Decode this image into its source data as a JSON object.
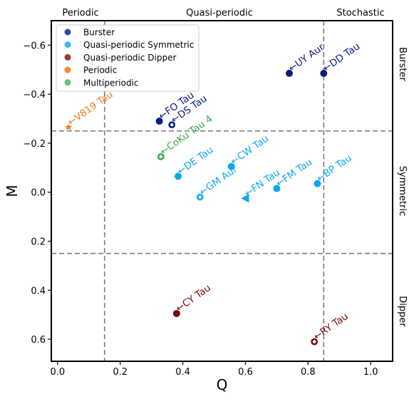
{
  "chart_data": {
    "type": "scatter",
    "xlabel": "Q",
    "ylabel": "M",
    "xlim": [
      -0.02,
      1.07
    ],
    "ylim": [
      0.69,
      -0.7
    ],
    "y_inverted": true,
    "xticks": [
      0.0,
      0.2,
      0.4,
      0.6,
      0.8,
      1.0
    ],
    "xtick_labels": [
      "0.0",
      "0.2",
      "0.4",
      "0.6",
      "0.8",
      "1.0"
    ],
    "yticks": [
      -0.6,
      -0.4,
      -0.2,
      0.0,
      0.2,
      0.4,
      0.6
    ],
    "ytick_labels": [
      "−0.6",
      "−0.4",
      "−0.2",
      "0.0",
      "0.2",
      "0.4",
      "0.6"
    ],
    "grid": false,
    "legend_position": "top-left",
    "dividers": {
      "q_values": [
        0.15,
        0.85
      ],
      "m_values": [
        -0.25,
        0.25
      ]
    },
    "top_regions": [
      "Periodic",
      "Quasi-periodic",
      "Stochastic"
    ],
    "right_regions": [
      "Burster",
      "Symmetric",
      "Dipper"
    ],
    "series": [
      {
        "name": "Burster",
        "color": "#0b1c7d",
        "legend_color": "#3a4aa0"
      },
      {
        "name": "Quasi-periodic Symmetric",
        "color": "#0aa8ef",
        "legend_color": "#3fb8ef"
      },
      {
        "name": "Quasi-periodic Dipper",
        "color": "#7a0a0a",
        "legend_color": "#a03a3a"
      },
      {
        "name": "Periodic",
        "color": "#f07c1e",
        "legend_color": "#f28a3a"
      },
      {
        "name": "Multiperiodic",
        "color": "#3aa84a",
        "legend_color": "#6cc07a"
      }
    ],
    "points": [
      {
        "label": "←UY Aur",
        "q": 0.74,
        "m": -0.485,
        "series": 0,
        "marker": "circle"
      },
      {
        "label": "←DD Tau",
        "q": 0.85,
        "m": -0.485,
        "series": 0,
        "marker": "circle"
      },
      {
        "label": "←FO Tau",
        "q": 0.325,
        "m": -0.29,
        "series": 0,
        "marker": "circle"
      },
      {
        "label": "←DS Tau",
        "q": 0.365,
        "m": -0.275,
        "series": 0,
        "marker": "open-circle"
      },
      {
        "label": "←V819 Tau",
        "q": 0.035,
        "m": -0.265,
        "series": 3,
        "marker": "star"
      },
      {
        "label": "←CoKu Tau 4",
        "q": 0.33,
        "m": -0.145,
        "series": 4,
        "marker": "open-circle"
      },
      {
        "label": "←DE Tau",
        "q": 0.385,
        "m": -0.065,
        "series": 1,
        "marker": "circle"
      },
      {
        "label": "←CW Tau",
        "q": 0.555,
        "m": -0.105,
        "series": 1,
        "marker": "circle"
      },
      {
        "label": "←GM Aur",
        "q": 0.455,
        "m": 0.02,
        "series": 1,
        "marker": "open-circle"
      },
      {
        "label": "←FN Tau",
        "q": 0.6,
        "m": 0.025,
        "series": 1,
        "marker": "triangle-left"
      },
      {
        "label": "←FM Tau",
        "q": 0.7,
        "m": -0.015,
        "series": 1,
        "marker": "circle"
      },
      {
        "label": "←BP Tau",
        "q": 0.83,
        "m": -0.035,
        "series": 1,
        "marker": "circle"
      },
      {
        "label": "←CY Tau",
        "q": 0.38,
        "m": 0.495,
        "series": 2,
        "marker": "circle"
      },
      {
        "label": "←RY Tau",
        "q": 0.82,
        "m": 0.61,
        "series": 2,
        "marker": "open-circle"
      }
    ]
  }
}
